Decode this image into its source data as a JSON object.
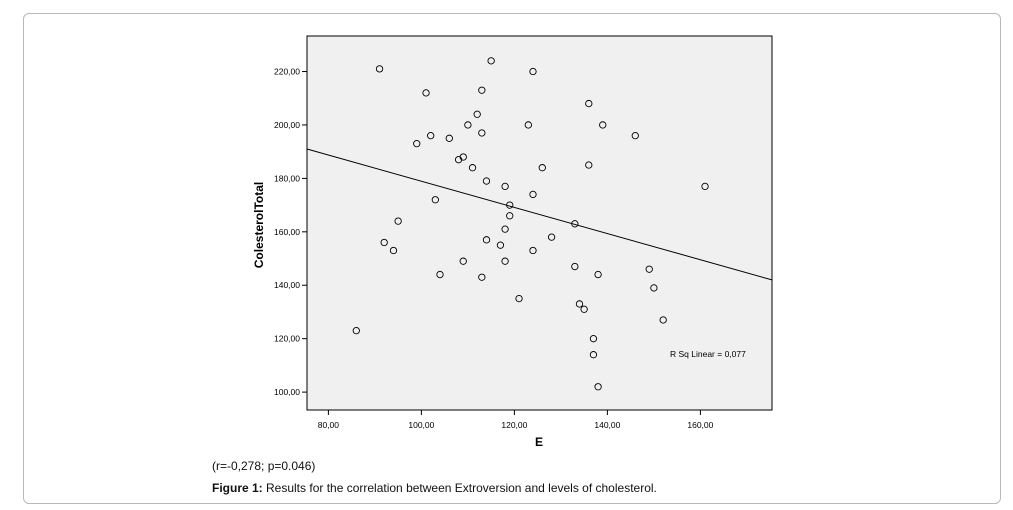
{
  "chart_data": {
    "type": "scatter",
    "xlabel": "E",
    "ylabel": "ColesterolTotal",
    "xlim": [
      75.4,
      175.4
    ],
    "ylim": [
      93.3,
      233.3
    ],
    "x_ticks": [
      80,
      100,
      120,
      140,
      160
    ],
    "x_tick_labels": [
      "80,00",
      "100,00",
      "120,00",
      "140,00",
      "160,00"
    ],
    "y_ticks": [
      100,
      120,
      140,
      160,
      180,
      200,
      220
    ],
    "y_tick_labels": [
      "100,00",
      "120,00",
      "140,00",
      "160,00",
      "180,00",
      "200,00",
      "220,00"
    ],
    "points": [
      {
        "x": 86,
        "y": 123
      },
      {
        "x": 91,
        "y": 221
      },
      {
        "x": 92,
        "y": 156
      },
      {
        "x": 94,
        "y": 153
      },
      {
        "x": 95,
        "y": 164
      },
      {
        "x": 99,
        "y": 193
      },
      {
        "x": 101,
        "y": 212
      },
      {
        "x": 102,
        "y": 196
      },
      {
        "x": 103,
        "y": 172
      },
      {
        "x": 104,
        "y": 144
      },
      {
        "x": 106,
        "y": 195
      },
      {
        "x": 108,
        "y": 187
      },
      {
        "x": 109,
        "y": 188
      },
      {
        "x": 109,
        "y": 149
      },
      {
        "x": 110,
        "y": 200
      },
      {
        "x": 111,
        "y": 184
      },
      {
        "x": 112,
        "y": 204
      },
      {
        "x": 113,
        "y": 213
      },
      {
        "x": 113,
        "y": 197
      },
      {
        "x": 113,
        "y": 143
      },
      {
        "x": 114,
        "y": 179
      },
      {
        "x": 114,
        "y": 157
      },
      {
        "x": 115,
        "y": 224
      },
      {
        "x": 117,
        "y": 155
      },
      {
        "x": 118,
        "y": 177
      },
      {
        "x": 118,
        "y": 161
      },
      {
        "x": 118,
        "y": 149
      },
      {
        "x": 119,
        "y": 170
      },
      {
        "x": 119,
        "y": 166
      },
      {
        "x": 121,
        "y": 135
      },
      {
        "x": 123,
        "y": 200
      },
      {
        "x": 124,
        "y": 220
      },
      {
        "x": 124,
        "y": 174
      },
      {
        "x": 124,
        "y": 153
      },
      {
        "x": 126,
        "y": 184
      },
      {
        "x": 128,
        "y": 158
      },
      {
        "x": 133,
        "y": 163
      },
      {
        "x": 133,
        "y": 147
      },
      {
        "x": 134,
        "y": 133
      },
      {
        "x": 135,
        "y": 131
      },
      {
        "x": 136,
        "y": 208
      },
      {
        "x": 136,
        "y": 185
      },
      {
        "x": 137,
        "y": 120
      },
      {
        "x": 137,
        "y": 114
      },
      {
        "x": 138,
        "y": 144
      },
      {
        "x": 138,
        "y": 102
      },
      {
        "x": 139,
        "y": 200
      },
      {
        "x": 146,
        "y": 196
      },
      {
        "x": 149,
        "y": 146
      },
      {
        "x": 150,
        "y": 139
      },
      {
        "x": 152,
        "y": 127
      },
      {
        "x": 161,
        "y": 177
      }
    ],
    "fit_line": {
      "x": [
        75.4,
        175.4
      ],
      "y": [
        191.0,
        142.0
      ]
    },
    "annotation": "R Sq Linear = 0,077",
    "colors": {
      "plot_background": "#f0f0f0",
      "marker": "#000000",
      "line": "#000000"
    }
  },
  "figure": {
    "stats": "(r=-0,278; p=0.046)",
    "caption_label": "Figure 1:",
    "caption_text": " Results for the correlation between Extroversion and levels of cholesterol."
  }
}
